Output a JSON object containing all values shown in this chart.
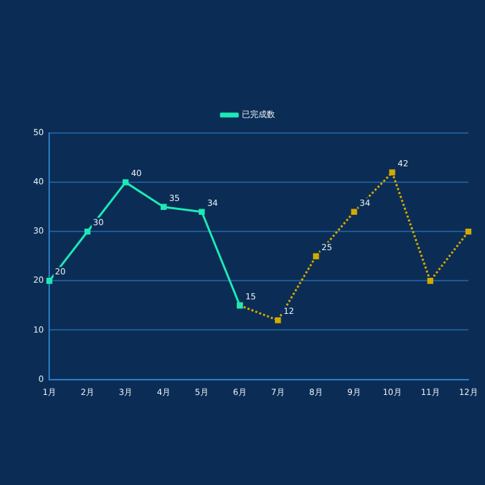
{
  "chart_data": {
    "type": "line",
    "categories": [
      "1月",
      "2月",
      "3月",
      "4月",
      "5月",
      "6月",
      "7月",
      "8月",
      "9月",
      "10月",
      "11月",
      "12月"
    ],
    "series": [
      {
        "name": "已完成数",
        "color": "#1de9b6",
        "line_style": "solid",
        "values": [
          20,
          30,
          40,
          35,
          34,
          15,
          null,
          null,
          null,
          null,
          null,
          null
        ],
        "value_labels": [
          "20",
          "30",
          "40",
          "35",
          "34",
          null,
          null,
          null,
          null,
          null,
          null,
          null
        ]
      },
      {
        "color": "#d4a900",
        "line_style": "dotted",
        "values": [
          null,
          null,
          null,
          null,
          null,
          15,
          12,
          25,
          34,
          42,
          20,
          30
        ],
        "value_labels": [
          null,
          null,
          null,
          null,
          null,
          "15",
          "12",
          "25",
          "34",
          "42",
          null,
          null
        ]
      }
    ],
    "ylim": [
      0,
      50
    ],
    "yticks": [
      0,
      10,
      20,
      30,
      40,
      50
    ],
    "grid": "y",
    "legend": "top",
    "marker": "square"
  }
}
